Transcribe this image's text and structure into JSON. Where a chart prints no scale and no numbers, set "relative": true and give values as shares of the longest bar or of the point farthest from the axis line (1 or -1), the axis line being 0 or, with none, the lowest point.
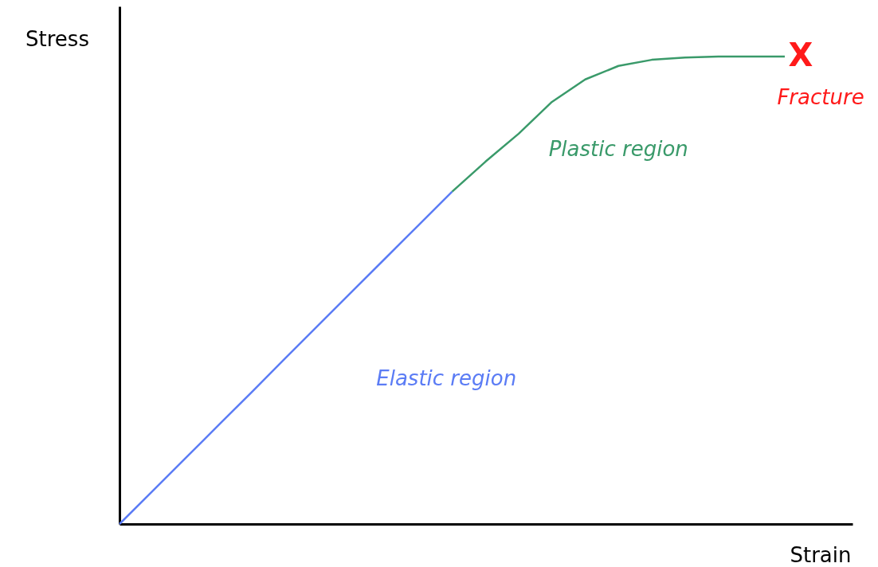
{
  "chart_data": {
    "type": "line",
    "relative": true,
    "xlabel": "Strain",
    "ylabel": "Stress",
    "categories": [
      null,
      null,
      null,
      null,
      null,
      null,
      null,
      null,
      null,
      null,
      null,
      null,
      null,
      null,
      null,
      null,
      null,
      null,
      null,
      null,
      null
    ],
    "series": [
      {
        "name": "Elastic region",
        "color": "#5b7cf5",
        "values": [
          0,
          0.071,
          0.142,
          0.213,
          0.284,
          0.356,
          0.427,
          0.498,
          0.569,
          0.64,
          0.711,
          null,
          null,
          null,
          null,
          null,
          null,
          null,
          null,
          null,
          null
        ]
      },
      {
        "name": "Plastic region",
        "color": "#3a9a6a",
        "values": [
          null,
          null,
          null,
          null,
          null,
          null,
          null,
          null,
          null,
          null,
          0.711,
          0.775,
          0.835,
          0.903,
          0.951,
          0.98,
          0.993,
          0.998,
          1,
          1,
          1
        ]
      }
    ],
    "annotations": [
      "X",
      "Fracture"
    ]
  }
}
